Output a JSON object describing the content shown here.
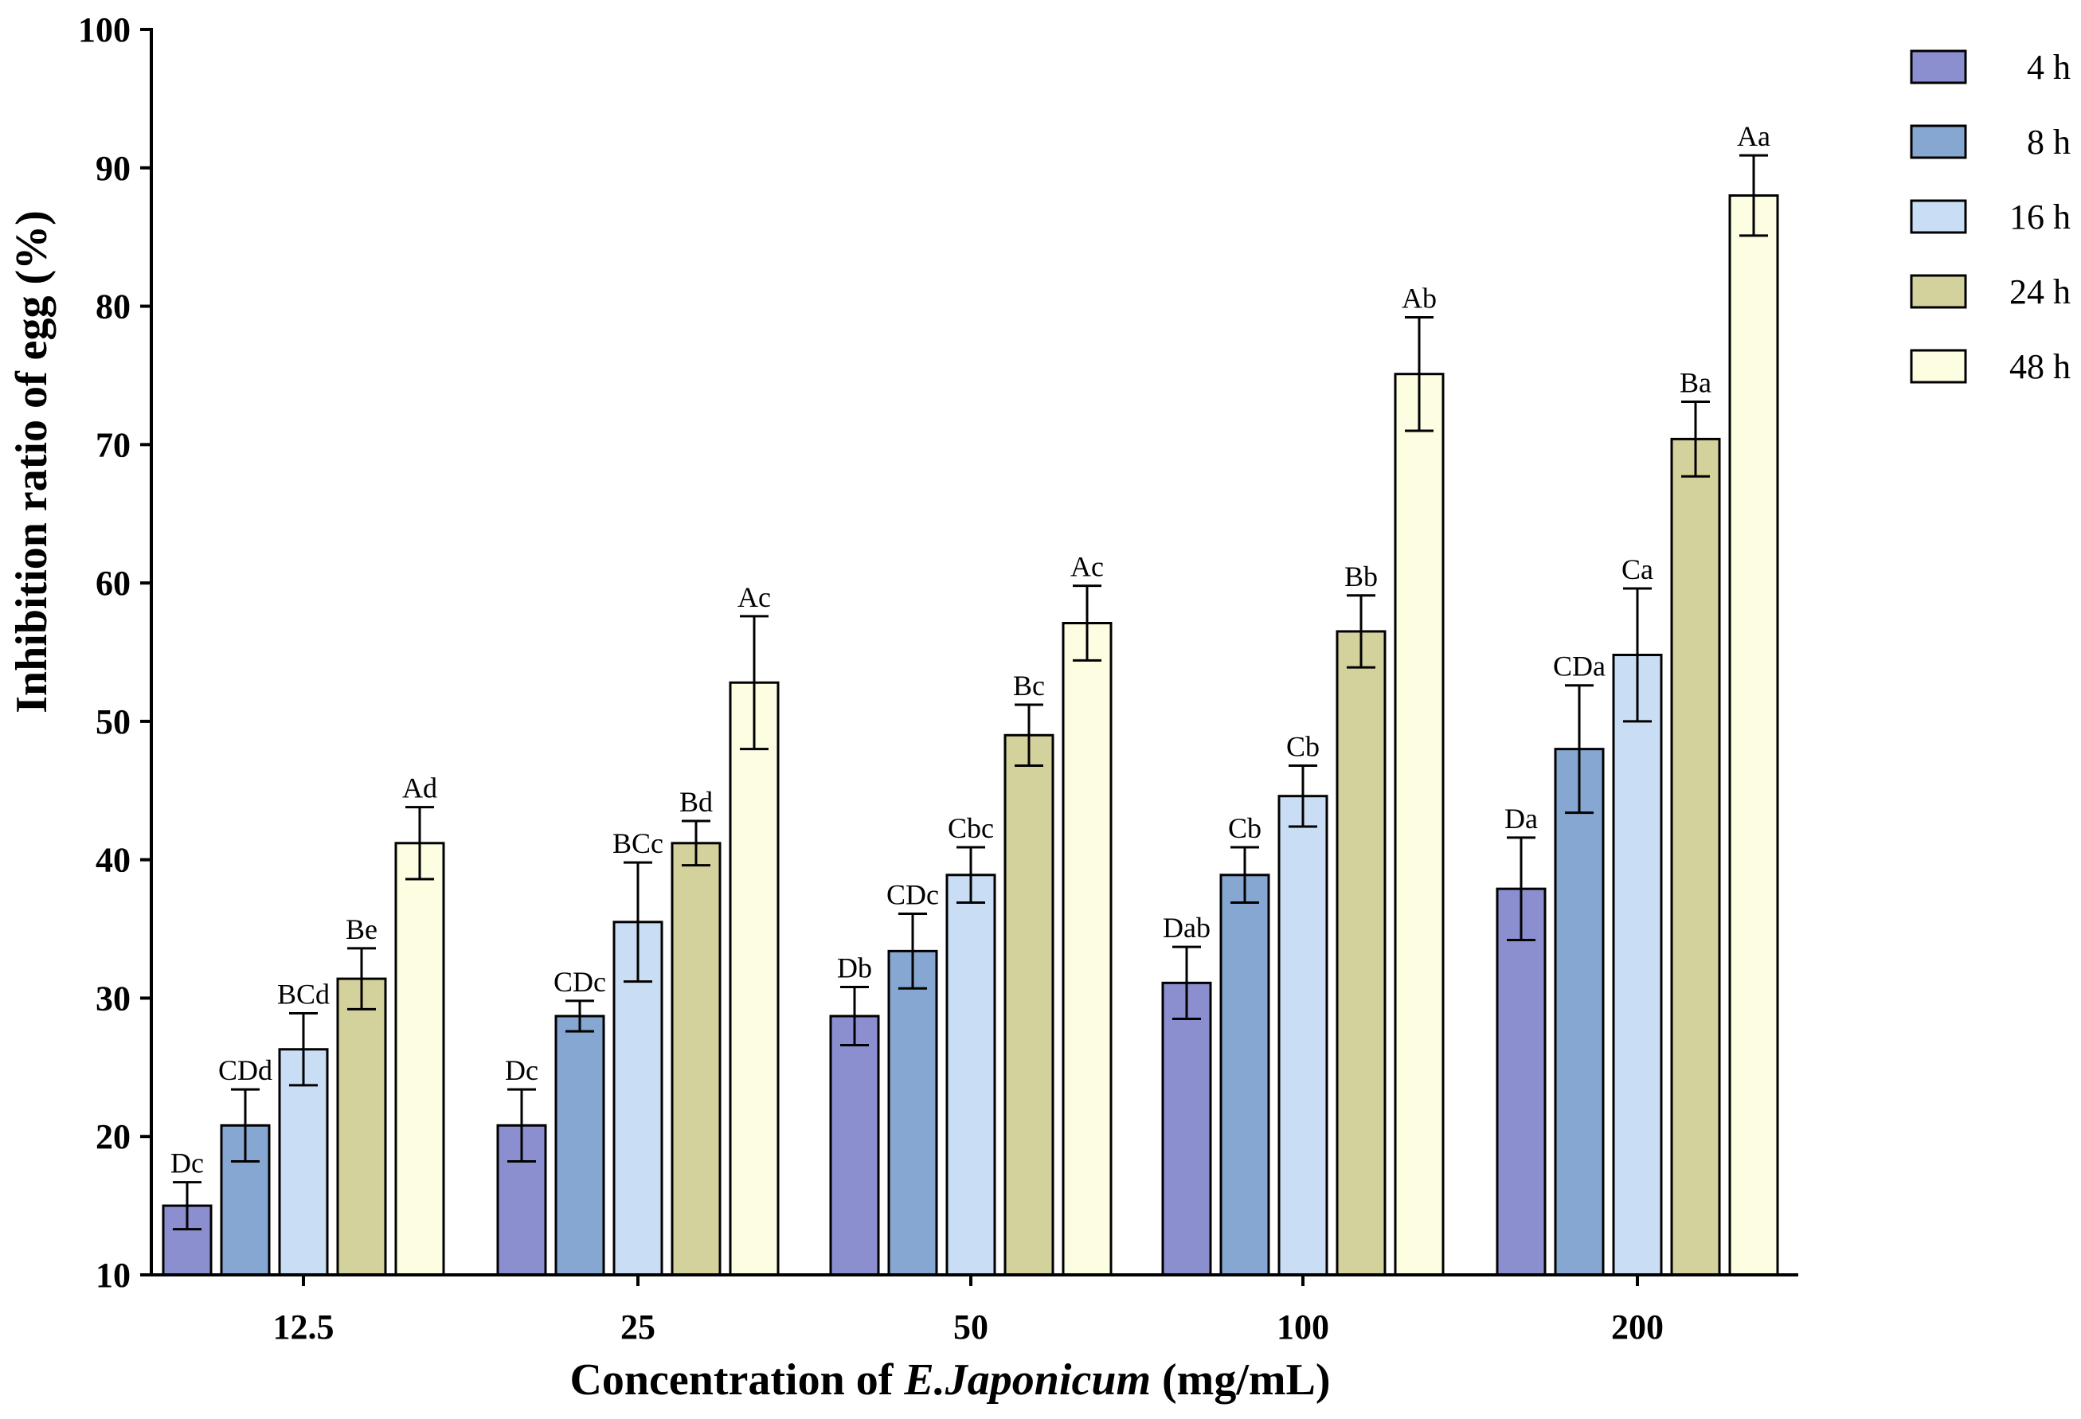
{
  "chart_data": {
    "type": "bar",
    "title": "",
    "xlabel": "Concentration of E.Japonicum (mg/mL)",
    "xlabel_parts": [
      "Concentration of ",
      "E.Japonicum",
      " (mg/mL)"
    ],
    "ylabel": "Inhibition ratio of egg (%)",
    "ylim": [
      10,
      100
    ],
    "yticks": [
      10,
      20,
      30,
      40,
      50,
      60,
      70,
      80,
      90,
      100
    ],
    "categories": [
      "12.5",
      "25",
      "50",
      "100",
      "200"
    ],
    "legend_position": "top-right",
    "series": [
      {
        "name": "4 h",
        "color": "#8b8fcf",
        "values": [
          15.0,
          20.8,
          28.7,
          31.1,
          37.9
        ],
        "errors": [
          1.7,
          2.6,
          2.1,
          2.6,
          3.7
        ],
        "labels": [
          "Dc",
          "Dc",
          "Db",
          "Dab",
          "Da"
        ]
      },
      {
        "name": "8 h",
        "color": "#86a7d1",
        "values": [
          20.8,
          28.7,
          33.4,
          38.9,
          48.0
        ],
        "errors": [
          2.6,
          1.1,
          2.7,
          2.0,
          4.6
        ],
        "labels": [
          "CDd",
          "CDc",
          "CDc",
          "Cb",
          "CDa"
        ]
      },
      {
        "name": "16 h",
        "color": "#c9ddf4",
        "values": [
          26.3,
          35.5,
          38.9,
          44.6,
          54.8
        ],
        "errors": [
          2.6,
          4.3,
          2.0,
          2.2,
          4.8
        ],
        "labels": [
          "BCd",
          "BCc",
          "Cbc",
          "Cb",
          "Ca"
        ]
      },
      {
        "name": "24 h",
        "color": "#d3d29c",
        "values": [
          31.4,
          41.2,
          49.0,
          56.5,
          70.4
        ],
        "errors": [
          2.2,
          1.6,
          2.2,
          2.6,
          2.7
        ],
        "labels": [
          "Be",
          "Bd",
          "Bc",
          "Bb",
          "Ba"
        ]
      },
      {
        "name": "48 h",
        "color": "#fdfde2",
        "values": [
          41.2,
          52.8,
          57.1,
          75.1,
          88.0
        ],
        "errors": [
          2.6,
          4.8,
          2.7,
          4.1,
          2.9
        ],
        "labels": [
          "Ad",
          "Ac",
          "Ac",
          "Ab",
          "Aa"
        ]
      }
    ]
  }
}
